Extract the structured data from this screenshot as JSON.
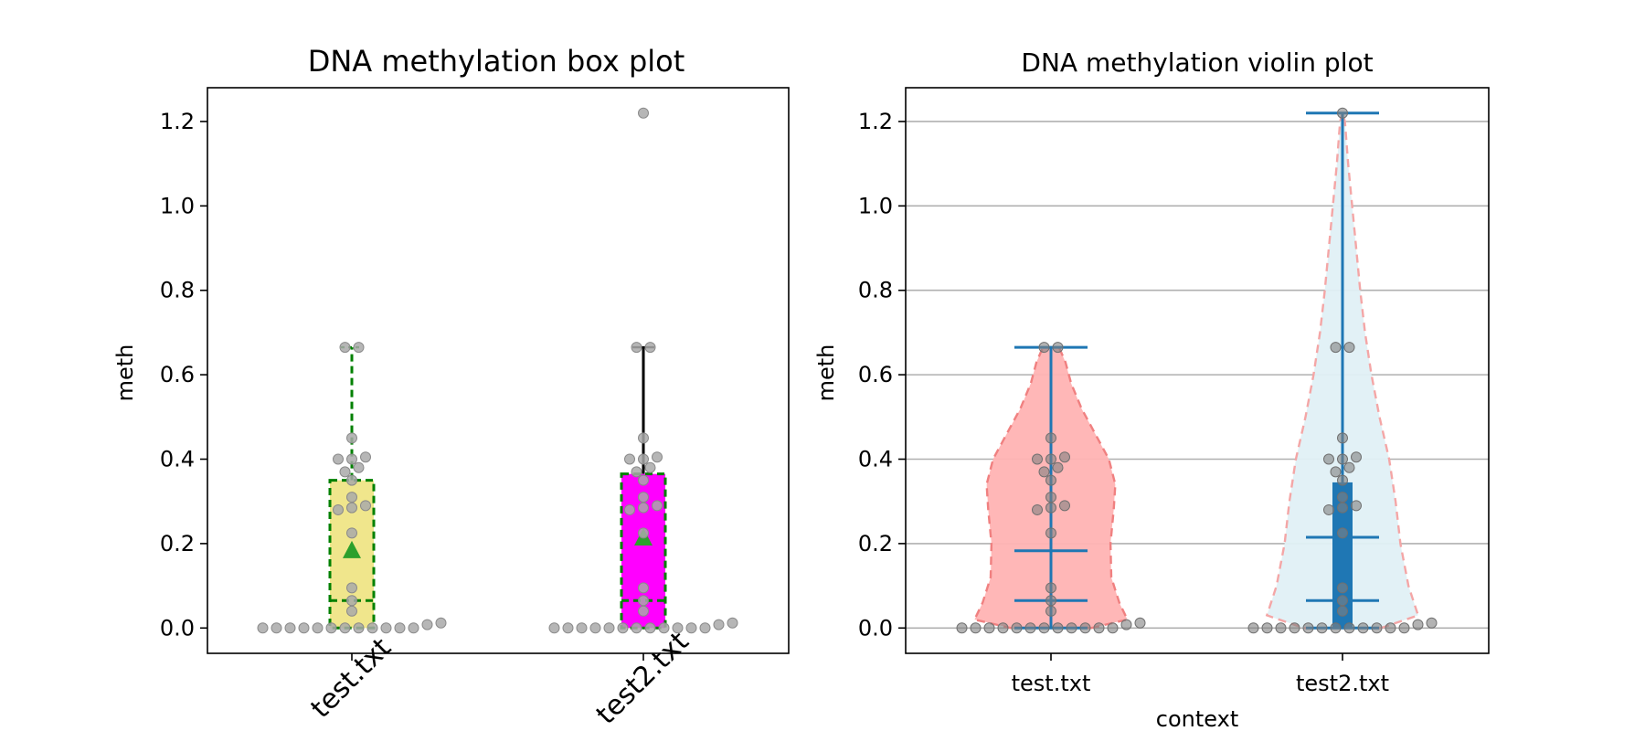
{
  "chart_data": [
    {
      "type": "box",
      "title": "DNA methylation box plot",
      "xlabel": "",
      "ylabel": "meth",
      "ylim": [
        -0.06,
        1.28
      ],
      "yticks": [
        "0.0",
        "0.2",
        "0.4",
        "0.6",
        "0.8",
        "1.0",
        "1.2"
      ],
      "categories": [
        "test.txt",
        "test2.txt"
      ],
      "grid": false,
      "boxes": [
        {
          "category": "test.txt",
          "whisker_low": 0.0,
          "q1": 0.0,
          "median": 0.065,
          "q3": 0.35,
          "whisker_high": 0.665,
          "mean": 0.185,
          "fill": "#f0e68c",
          "edge": "#008000",
          "edge_style": "dashed"
        },
        {
          "category": "test2.txt",
          "whisker_low": 0.0,
          "q1": 0.0,
          "median": 0.065,
          "q3": 0.365,
          "whisker_high": 0.665,
          "mean": 0.215,
          "fill": "#ff00ff",
          "edge": "#008000",
          "edge_style": "dashed",
          "whisker_color": "#000000"
        }
      ],
      "points": [
        {
          "category": "test.txt",
          "values": [
            0.008,
            0.0,
            0.0,
            0.0,
            0.0,
            0.0,
            0.0,
            0.0,
            0.0,
            0.0,
            0.0,
            0.0,
            0.0,
            0.012,
            0.04,
            0.065,
            0.095,
            0.225,
            0.28,
            0.285,
            0.29,
            0.31,
            0.35,
            0.37,
            0.38,
            0.4,
            0.4,
            0.405,
            0.45,
            0.665,
            0.665
          ]
        },
        {
          "category": "test2.txt",
          "values": [
            0.008,
            0.0,
            0.0,
            0.0,
            0.0,
            0.0,
            0.0,
            0.0,
            0.0,
            0.0,
            0.0,
            0.0,
            0.0,
            0.012,
            0.04,
            0.065,
            0.095,
            0.225,
            0.28,
            0.285,
            0.29,
            0.31,
            0.35,
            0.37,
            0.38,
            0.4,
            0.4,
            0.405,
            0.45,
            0.665,
            0.665,
            1.22
          ]
        }
      ],
      "point_color": "#a9a9a9",
      "mean_color": "#2ca02c"
    },
    {
      "type": "violin",
      "title": "DNA methylation violin plot",
      "xlabel": "context",
      "ylabel": "meth",
      "ylim": [
        -0.06,
        1.28
      ],
      "yticks": [
        "0.0",
        "0.2",
        "0.4",
        "0.6",
        "0.8",
        "1.0",
        "1.2"
      ],
      "categories": [
        "test.txt",
        "test2.txt"
      ],
      "grid": true,
      "violins": [
        {
          "category": "test.txt",
          "min": 0.0,
          "max": 0.665,
          "mean": 0.183,
          "median": 0.065,
          "fill": "#ffb3b3",
          "edge": "#f08080",
          "profile": [
            [
              0.0,
              0.5
            ],
            [
              0.02,
              0.95
            ],
            [
              0.06,
              0.85
            ],
            [
              0.12,
              0.75
            ],
            [
              0.2,
              0.74
            ],
            [
              0.28,
              0.78
            ],
            [
              0.34,
              0.8
            ],
            [
              0.4,
              0.72
            ],
            [
              0.46,
              0.55
            ],
            [
              0.52,
              0.38
            ],
            [
              0.58,
              0.25
            ],
            [
              0.63,
              0.18
            ],
            [
              0.665,
              0.1
            ]
          ]
        },
        {
          "category": "test2.txt",
          "min": 0.0,
          "max": 1.22,
          "mean": 0.215,
          "median": 0.065,
          "q1": 0.0,
          "q3": 0.345,
          "fill": "#e0f0f6",
          "edge": "#f4a6a6",
          "profile": [
            [
              0.0,
              0.48
            ],
            [
              0.03,
              0.94
            ],
            [
              0.1,
              0.82
            ],
            [
              0.2,
              0.72
            ],
            [
              0.3,
              0.66
            ],
            [
              0.4,
              0.58
            ],
            [
              0.5,
              0.46
            ],
            [
              0.6,
              0.36
            ],
            [
              0.7,
              0.28
            ],
            [
              0.8,
              0.22
            ],
            [
              0.9,
              0.17
            ],
            [
              1.0,
              0.12
            ],
            [
              1.1,
              0.07
            ],
            [
              1.2,
              0.03
            ],
            [
              1.22,
              0.0
            ]
          ]
        }
      ],
      "points": [
        {
          "category": "test.txt",
          "values": [
            0.008,
            0.0,
            0.0,
            0.0,
            0.0,
            0.0,
            0.0,
            0.0,
            0.0,
            0.0,
            0.0,
            0.0,
            0.0,
            0.012,
            0.04,
            0.065,
            0.095,
            0.225,
            0.28,
            0.285,
            0.29,
            0.31,
            0.35,
            0.37,
            0.38,
            0.4,
            0.4,
            0.405,
            0.45,
            0.665,
            0.665
          ]
        },
        {
          "category": "test2.txt",
          "values": [
            0.008,
            0.0,
            0.0,
            0.0,
            0.0,
            0.0,
            0.0,
            0.0,
            0.0,
            0.0,
            0.0,
            0.0,
            0.0,
            0.012,
            0.04,
            0.065,
            0.095,
            0.225,
            0.28,
            0.285,
            0.29,
            0.31,
            0.35,
            0.37,
            0.38,
            0.4,
            0.4,
            0.405,
            0.45,
            0.665,
            0.665,
            1.22
          ]
        }
      ],
      "point_color": "#808080",
      "line_color": "#1f77b4"
    }
  ]
}
